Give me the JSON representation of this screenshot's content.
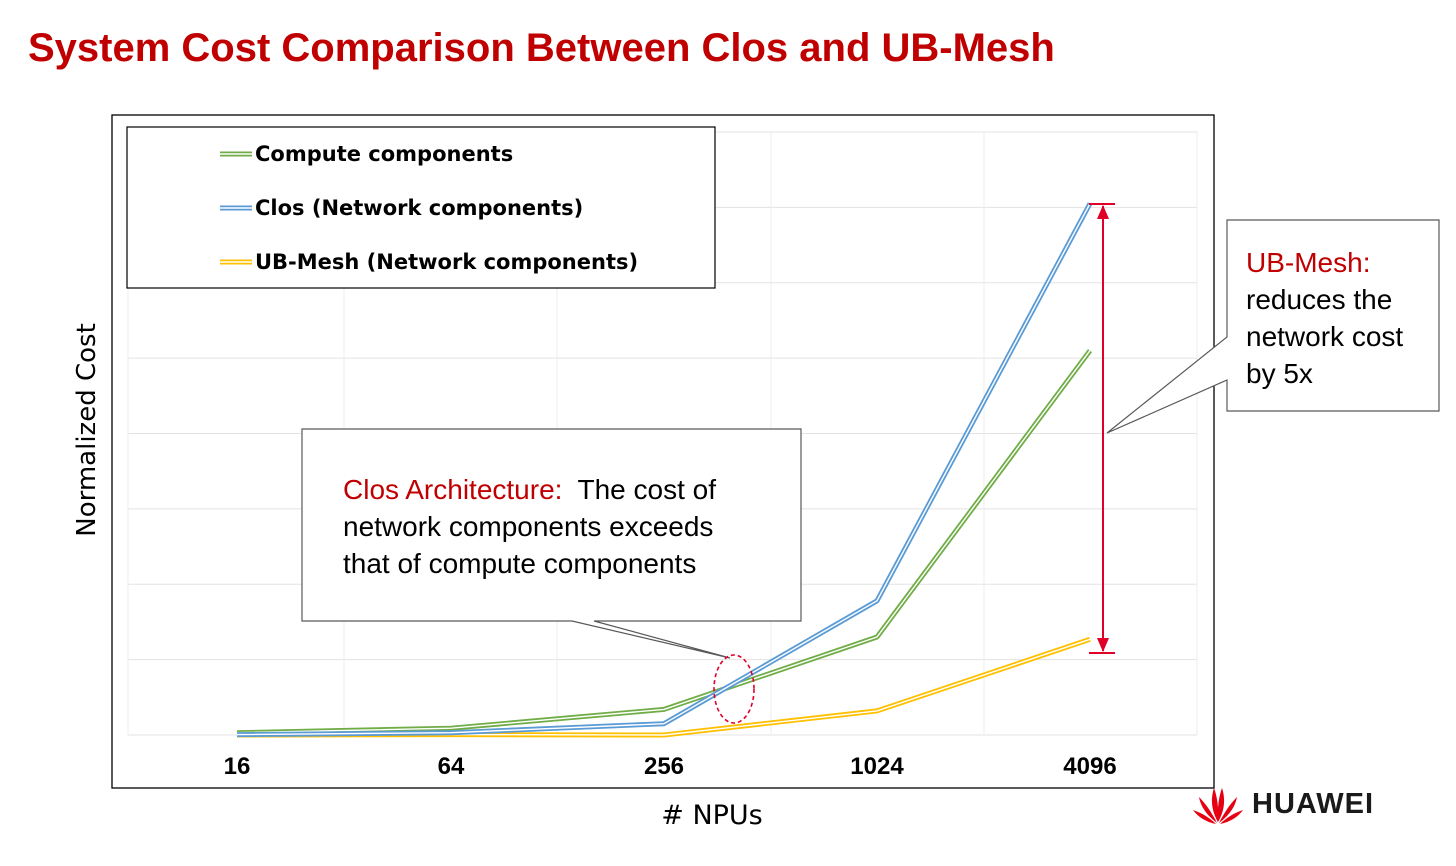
{
  "page": {
    "title": "System Cost Comparison Between Clos and UB-Mesh",
    "brand": "HUAWEI",
    "brand_icon": "huawei-petal-logo-icon",
    "brand_color": "#e60012"
  },
  "chart_data": {
    "type": "line",
    "title": "",
    "xlabel": "# NPUs",
    "ylabel": "Normalized Cost",
    "categories": [
      "16",
      "64",
      "256",
      "1024",
      "4096"
    ],
    "ylim": [
      0,
      8
    ],
    "grid": true,
    "legend_position": "top-left",
    "series": [
      {
        "name": "Compute components",
        "color": "#70ad47",
        "values": [
          0.03,
          0.09,
          0.34,
          1.3,
          5.1
        ]
      },
      {
        "name": "Clos (Network components)",
        "color": "#5b9bd5",
        "values": [
          0.005,
          0.03,
          0.15,
          1.78,
          7.05
        ]
      },
      {
        "name": "UB-Mesh (Network components)",
        "color": "#ffc000",
        "values": [
          0.0,
          0.005,
          0.0,
          0.32,
          1.27
        ]
      }
    ],
    "annotations": {
      "clos": {
        "highlight": "Clos Architecture:",
        "text_lines": [
          "  The cost of",
          "network components exceeds",
          "that of compute components"
        ]
      },
      "ubmesh": {
        "highlight": "UB-Mesh:",
        "text_lines": [
          "reduces the",
          "network cost",
          "by 5x"
        ]
      },
      "highlight_color": "#c00000",
      "arrow_color": "#e0002a"
    }
  }
}
